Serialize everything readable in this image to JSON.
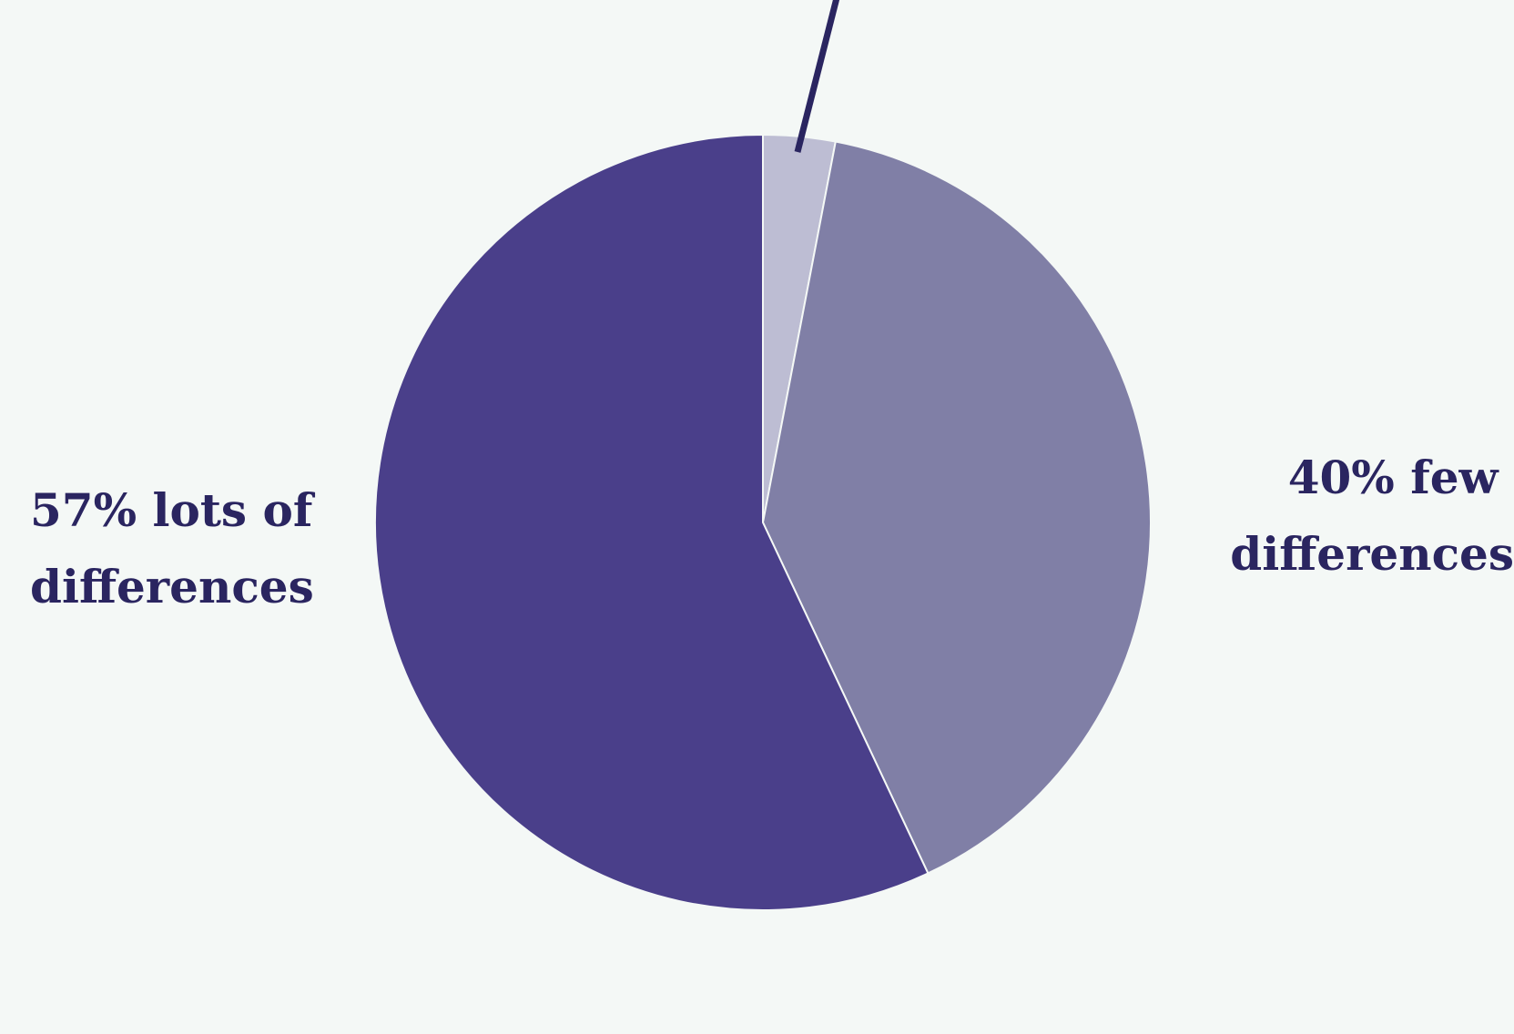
{
  "chart_data": {
    "type": "pie",
    "start_angle_deg": 0,
    "direction": "clockwise",
    "slices": [
      {
        "key": "small",
        "value": 3,
        "color": "#bdbdd3",
        "label_lines": [],
        "label_side": "top",
        "leader_line": true
      },
      {
        "key": "few",
        "value": 40,
        "color": "#807fa6",
        "label_lines": [
          "40% few",
          "differences"
        ],
        "label_side": "right",
        "leader_line": false
      },
      {
        "key": "lots",
        "value": 57,
        "color": "#4a3f8a",
        "label_lines": [
          "57% lots of",
          "differences"
        ],
        "label_side": "left",
        "leader_line": false
      }
    ]
  },
  "colors": {
    "background": "#f4f8f6",
    "label_text": "#2a2560",
    "leader_line": "#2a2560"
  }
}
